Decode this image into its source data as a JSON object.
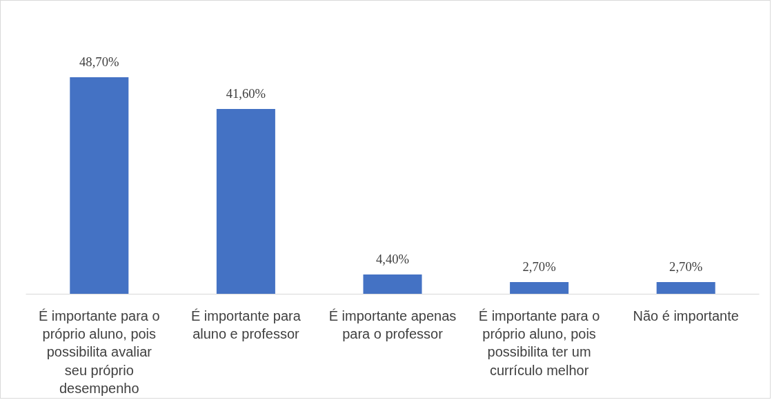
{
  "chart_data": {
    "type": "bar",
    "categories": [
      "É importante para o próprio aluno, pois possibilita avaliar seu próprio desempenho",
      "É importante para aluno e professor",
      "É importante apenas para o professor",
      "É importante para o próprio aluno, pois possibilita ter um currículo melhor",
      "Não é importante"
    ],
    "values": [
      48.7,
      41.6,
      4.4,
      2.7,
      2.7
    ],
    "value_labels": [
      "48,70%",
      "41,60%",
      "4,40%",
      "2,70%",
      "2,70%"
    ],
    "color": "#4472c4"
  }
}
